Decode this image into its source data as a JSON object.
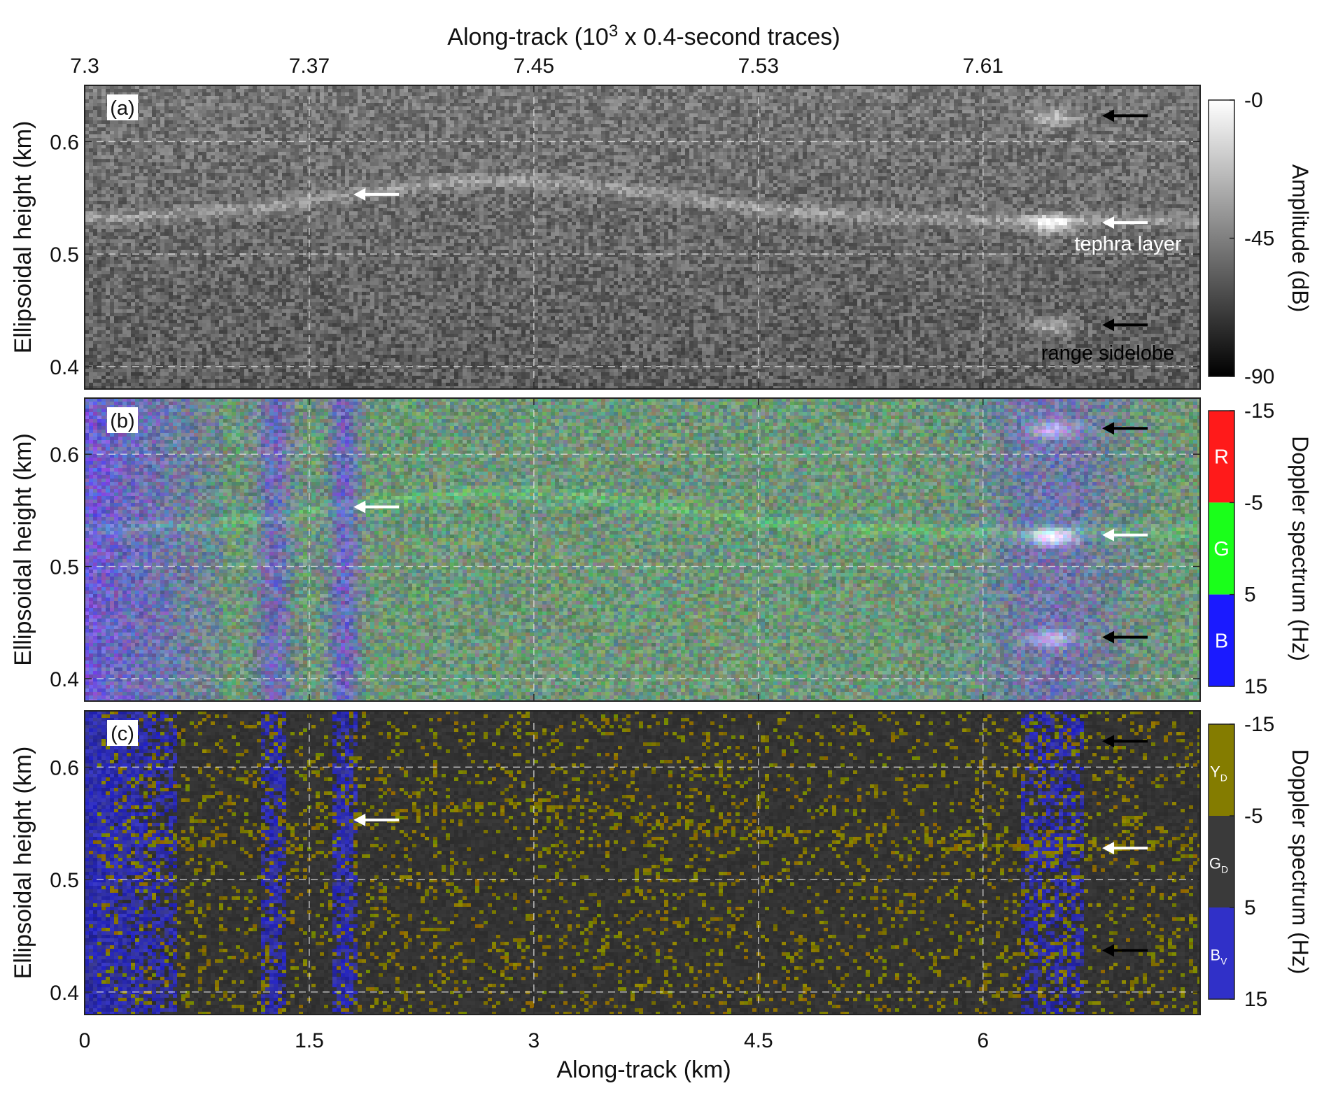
{
  "figure": {
    "top_axis": {
      "label_prefix": "Along-track (10",
      "label_exponent": "3",
      "label_suffix": " x 0.4-second traces)",
      "ticks": [
        "7.3",
        "7.37",
        "7.45",
        "7.53",
        "7.61"
      ]
    },
    "bottom_axis": {
      "label": "Along-track (km)",
      "ticks": [
        "0",
        "1.5",
        "3",
        "4.5",
        "6"
      ]
    }
  },
  "panels": [
    {
      "id": "a",
      "tag": "(a)",
      "ylabel": "Ellipsoidal height (km)",
      "yticks": [
        "0.6",
        "0.5",
        "0.4"
      ],
      "colorbar": {
        "title": "Amplitude (dB)",
        "ticks": [
          "-0",
          "-45",
          "-90"
        ],
        "colors": {
          "top": "#ffffff",
          "bottom": "#000000"
        }
      },
      "annotations": {
        "tephra_layer": "tephra layer",
        "range_sidelobe": "range sidelobe"
      }
    },
    {
      "id": "b",
      "tag": "(b)",
      "ylabel": "Ellipsoidal height (km)",
      "yticks": [
        "0.6",
        "0.5",
        "0.4"
      ],
      "colorbar": {
        "title": "Doppler spectrum (Hz)",
        "ticks": [
          "-15",
          "-5",
          "5",
          "15"
        ],
        "bands": [
          {
            "letter": "R",
            "sub": "",
            "color": "#ff1a1a"
          },
          {
            "letter": "G",
            "sub": "",
            "color": "#1aff1a"
          },
          {
            "letter": "B",
            "sub": "",
            "color": "#1a1aff"
          }
        ]
      }
    },
    {
      "id": "c",
      "tag": "(c)",
      "ylabel": "Ellipsoidal height (km)",
      "yticks": [
        "0.6",
        "0.5",
        "0.4"
      ],
      "colorbar": {
        "title": "Doppler spectrum (Hz)",
        "ticks": [
          "-15",
          "-5",
          "5",
          "15"
        ],
        "bands": [
          {
            "letter": "Y",
            "sub": "D",
            "color": "#847c00"
          },
          {
            "letter": "G",
            "sub": "D",
            "color": "#3a3a3a"
          },
          {
            "letter": "B",
            "sub": "V",
            "color": "#3030c8"
          }
        ]
      }
    }
  ],
  "chart_data": {
    "type": "heatmap",
    "x": {
      "label": "Along-track (km)",
      "lim": [
        0,
        7.45
      ],
      "ticks": [
        0,
        1.5,
        3,
        4.5,
        6
      ]
    },
    "x_top": {
      "label": "Along-track (10^3 x 0.4-second traces)",
      "ticks": [
        7.3,
        7.37,
        7.45,
        7.53,
        7.61
      ]
    },
    "y": {
      "label": "Ellipsoidal height (km)",
      "lim": [
        0.38,
        0.65
      ],
      "ticks": [
        0.4,
        0.5,
        0.6
      ]
    },
    "grid": true,
    "panels": [
      {
        "id": "a",
        "quantity": "Amplitude (dB)",
        "clim": [
          -90,
          0
        ],
        "colormap": "gray"
      },
      {
        "id": "b",
        "quantity": "Doppler spectrum (Hz)",
        "clim": [
          -15,
          15
        ],
        "colormap": "RGB composite"
      },
      {
        "id": "c",
        "quantity": "Doppler spectrum (Hz)",
        "clim": [
          -15,
          15
        ],
        "colormap": "Y_D / G_D / B_V classes"
      }
    ],
    "arrows": [
      {
        "x_km": 1.95,
        "y_km": 0.553,
        "color": "white",
        "panels": [
          "a",
          "b",
          "c"
        ]
      },
      {
        "x_km": 6.95,
        "y_km": 0.623,
        "color": "black",
        "panels": [
          "a",
          "b",
          "c"
        ]
      },
      {
        "x_km": 6.95,
        "y_km": 0.528,
        "color": "white",
        "panels": [
          "a",
          "b",
          "c"
        ]
      },
      {
        "x_km": 6.95,
        "y_km": 0.437,
        "color": "black",
        "panels": [
          "a",
          "b",
          "c"
        ]
      }
    ]
  }
}
